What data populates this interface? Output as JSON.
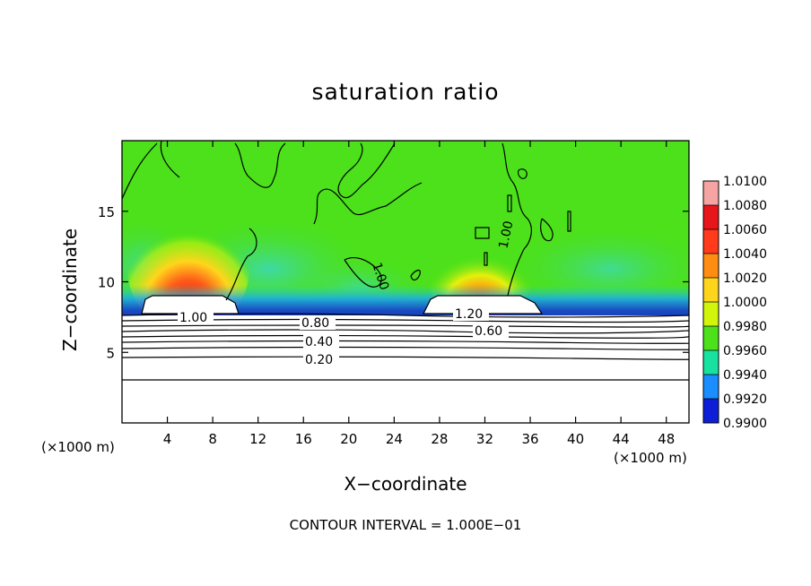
{
  "chart_data": {
    "type": "heatmap",
    "title": "saturation ratio",
    "xlabel": "X−coordinate",
    "ylabel": "Z−coordinate",
    "x_unit_left": "(×1000 m)",
    "x_unit_right": "(×1000 m)",
    "xlim": [
      0,
      50
    ],
    "ylim": [
      0,
      20
    ],
    "xticks": [
      4,
      8,
      12,
      16,
      20,
      24,
      28,
      32,
      36,
      40,
      44,
      48
    ],
    "yticks": [
      5,
      10,
      15
    ],
    "colorbar": {
      "levels": [
        "1.0100",
        "1.0080",
        "1.0060",
        "1.0040",
        "1.0020",
        "1.0000",
        "0.9980",
        "0.9960",
        "0.9940",
        "0.9920",
        "0.9900"
      ],
      "colors": [
        "#f5a3a3",
        "#e8151a",
        "#ff3b1c",
        "#ff8d12",
        "#ffd51c",
        "#d2f50c",
        "#4ce11a",
        "#18e2a0",
        "#1a8dff",
        "#0d1fd6",
        "#6a0da8"
      ]
    },
    "contour_labels": [
      "1.00",
      "0.80",
      "0.40",
      "0.20",
      "1.20",
      "0.60",
      "1.00",
      "1.00"
    ],
    "footnote": "CONTOUR INTERVAL = 1.000E−01"
  }
}
